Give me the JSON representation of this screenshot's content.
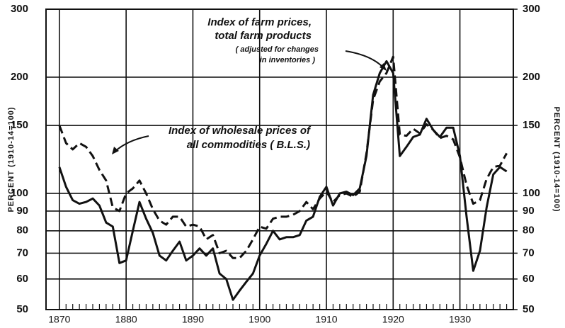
{
  "chart_data": {
    "type": "line",
    "x": [
      1870,
      1871,
      1872,
      1873,
      1874,
      1875,
      1876,
      1877,
      1878,
      1879,
      1880,
      1881,
      1882,
      1883,
      1884,
      1885,
      1886,
      1887,
      1888,
      1889,
      1890,
      1891,
      1892,
      1893,
      1894,
      1895,
      1896,
      1897,
      1898,
      1899,
      1900,
      1901,
      1902,
      1903,
      1904,
      1905,
      1906,
      1907,
      1908,
      1909,
      1910,
      1911,
      1912,
      1913,
      1914,
      1915,
      1916,
      1917,
      1918,
      1919,
      1920,
      1921,
      1922,
      1923,
      1924,
      1925,
      1926,
      1927,
      1928,
      1929,
      1930,
      1931,
      1932,
      1933,
      1934,
      1935,
      1936,
      1937
    ],
    "series": [
      {
        "color": "#111111",
        "dash": false,
        "values": [
          117,
          104,
          96,
          94,
          95,
          97,
          93,
          84,
          82,
          66,
          67,
          80,
          95,
          86,
          79,
          69,
          67,
          71,
          75,
          67,
          69,
          72,
          69,
          72,
          62,
          60,
          53,
          56,
          59,
          62,
          69,
          74,
          80,
          76,
          77,
          77,
          78,
          85,
          87,
          98,
          104,
          93,
          100,
          101,
          99,
          103,
          125,
          180,
          205,
          220,
          205,
          125,
          132,
          140,
          142,
          156,
          146,
          140,
          148,
          148,
          125,
          87,
          63,
          71,
          92,
          112,
          117,
          114
        ]
      },
      {
        "color": "#111111",
        "dash": true,
        "values": [
          150,
          135,
          130,
          135,
          132,
          125,
          115,
          108,
          92,
          90,
          100,
          103,
          108,
          100,
          91,
          85,
          83,
          87,
          87,
          82,
          83,
          82,
          76,
          78,
          70,
          71,
          68,
          68,
          71,
          76,
          82,
          81,
          86,
          87,
          87,
          88,
          90,
          95,
          91,
          97,
          101,
          95,
          99,
          100,
          98,
          101,
          127,
          175,
          195,
          205,
          226,
          142,
          141,
          147,
          143,
          151,
          146,
          139,
          141,
          138,
          124,
          105,
          94,
          96,
          109,
          117,
          118,
          127
        ]
      }
    ],
    "xlim": [
      1868,
      1938
    ],
    "xticks": [
      1870,
      1880,
      1890,
      1900,
      1910,
      1920,
      1930
    ],
    "ylim": [
      50,
      300
    ],
    "yticks": [
      50,
      60,
      70,
      80,
      90,
      100,
      150,
      200,
      300
    ],
    "log_y": true,
    "grid": true,
    "y2lim": [
      50,
      300
    ],
    "y2ticks": [
      50,
      60,
      70,
      80,
      90,
      100,
      150,
      200,
      300
    ],
    "ylabel": "PERCENT (1910-14=100)",
    "y2label": "PERCENT (1910-14=100)",
    "annotations": [
      [
        "Index of farm prices,",
        "total farm products"
      ],
      [
        "( adjusted for changes",
        "in inventories )"
      ],
      [
        "Index of wholesale prices of",
        "all commodities ( B.L.S.)"
      ]
    ]
  }
}
